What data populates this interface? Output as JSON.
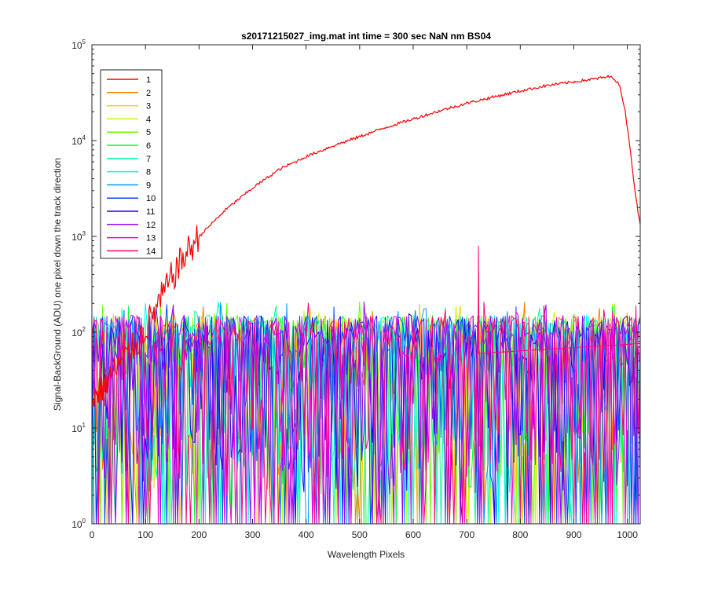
{
  "chart_data": {
    "type": "line",
    "title": "s20171215027_img.mat int time = 300 sec  NaN nm BS04",
    "xlabel": "Wavelength Pixels",
    "ylabel": "Signal-BackGround (ADU) one pixel down the track direction",
    "x_range": [
      0,
      1024
    ],
    "y_range": [
      1,
      100000
    ],
    "y_scale": "log",
    "x_ticks": [
      0,
      100,
      200,
      300,
      400,
      500,
      600,
      700,
      800,
      900,
      1000
    ],
    "y_ticks": [
      {
        "base": "10",
        "exp": "0",
        "value": 1
      },
      {
        "base": "10",
        "exp": "1",
        "value": 10
      },
      {
        "base": "10",
        "exp": "2",
        "value": 100
      },
      {
        "base": "10",
        "exp": "3",
        "value": 1000
      },
      {
        "base": "10",
        "exp": "4",
        "value": 10000
      },
      {
        "base": "10",
        "exp": "5",
        "value": 100000
      }
    ],
    "grid": false,
    "legend_position": "top-left",
    "series": [
      {
        "name": "1",
        "color": "#ff0000",
        "x": [
          0,
          25,
          50,
          75,
          100,
          125,
          150,
          175,
          200,
          250,
          300,
          350,
          400,
          450,
          500,
          550,
          600,
          650,
          700,
          750,
          800,
          850,
          900,
          925,
          950,
          965,
          975,
          985,
          995,
          1005,
          1015,
          1024
        ],
        "y": [
          20,
          30,
          45,
          65,
          110,
          200,
          380,
          650,
          1000,
          1900,
          3200,
          5000,
          6800,
          8800,
          11000,
          13800,
          16800,
          20500,
          24500,
          28500,
          33000,
          37500,
          41000,
          43000,
          45000,
          46500,
          45000,
          38000,
          22000,
          8500,
          2700,
          1300
        ]
      },
      {
        "name": "2",
        "color": "#ff7a00"
      },
      {
        "name": "3",
        "color": "#ffcc00"
      },
      {
        "name": "4",
        "color": "#bbff00"
      },
      {
        "name": "5",
        "color": "#66ff00"
      },
      {
        "name": "6",
        "color": "#00ff33"
      },
      {
        "name": "7",
        "color": "#00ff99"
      },
      {
        "name": "8",
        "color": "#00ffee"
      },
      {
        "name": "9",
        "color": "#0099ff"
      },
      {
        "name": "10",
        "color": "#0044ff"
      },
      {
        "name": "11",
        "color": "#2200ff"
      },
      {
        "name": "12",
        "color": "#9900ff"
      },
      {
        "name": "13",
        "color": "#ff00dd"
      },
      {
        "name": "14",
        "color": "#ff0077"
      }
    ],
    "noise_band_approx": {
      "typical_y": [
        2,
        200
      ],
      "spike": {
        "x": 722,
        "y": 800
      }
    }
  }
}
